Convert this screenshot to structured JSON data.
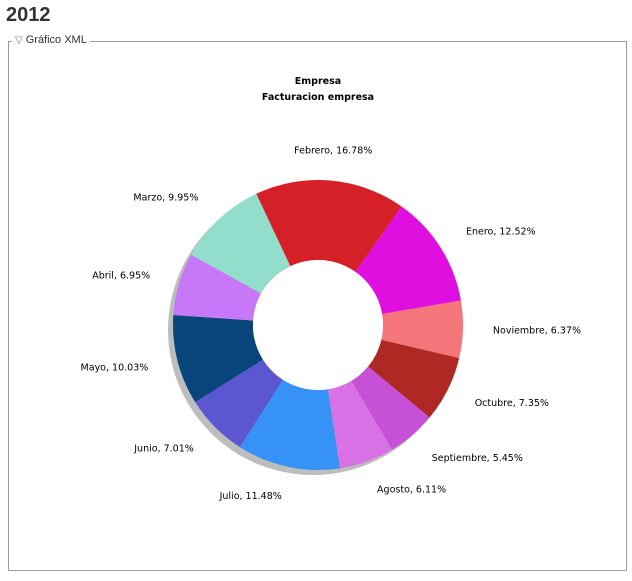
{
  "page": {
    "year": "2012",
    "section_label": "Gráfico XML",
    "toggle_glyph": "▽"
  },
  "chart_data": {
    "type": "pie",
    "style": "donut",
    "title": "Empresa",
    "subtitle": "Facturacion empresa",
    "slices": [
      {
        "label": "Febrero",
        "value": 16.78,
        "text": "Febrero, 16.78%",
        "color": "#d62027"
      },
      {
        "label": "Enero",
        "value": 12.52,
        "text": "Enero, 12.52%",
        "color": "#df10df"
      },
      {
        "label": "Noviembre",
        "value": 6.37,
        "text": "Noviembre, 6.37%",
        "color": "#f4757a"
      },
      {
        "label": "Octubre",
        "value": 7.35,
        "text": "Octubre, 7.35%",
        "color": "#b02823"
      },
      {
        "label": "Septiembre",
        "value": 5.45,
        "text": "Septiembre, 5.45%",
        "color": "#c650d6"
      },
      {
        "label": "Agosto",
        "value": 6.11,
        "text": "Agosto, 6.11%",
        "color": "#d871e6"
      },
      {
        "label": "Julio",
        "value": 11.48,
        "text": "Julio, 11.48%",
        "color": "#3792f5"
      },
      {
        "label": "Junio",
        "value": 7.01,
        "text": "Junio, 7.01%",
        "color": "#5a57d0"
      },
      {
        "label": "Mayo",
        "value": 10.03,
        "text": "Mayo, 10.03%",
        "color": "#08457a"
      },
      {
        "label": "Abril",
        "value": 6.95,
        "text": "Abril, 6.95%",
        "color": "#c678f8"
      },
      {
        "label": "Marzo",
        "value": 9.95,
        "text": "Marzo, 9.95%",
        "color": "#93ddcd"
      }
    ]
  }
}
